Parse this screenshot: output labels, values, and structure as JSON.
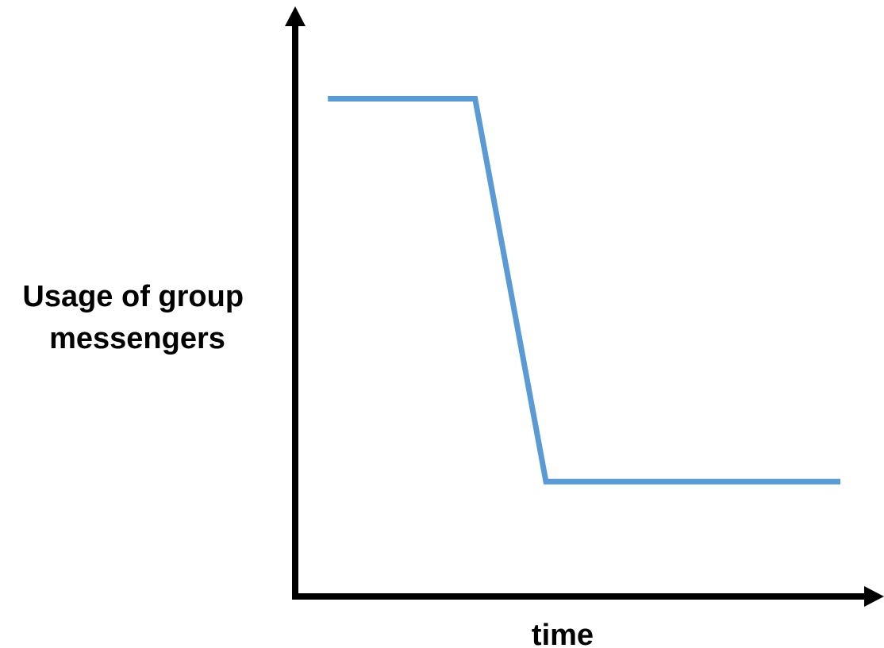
{
  "chart_data": {
    "type": "line",
    "title": "",
    "xlabel": "time",
    "ylabel": "Usage of group messengers",
    "ylabel_lines": [
      "Usage of group",
      "messengers"
    ],
    "x": [
      0.06,
      0.33,
      0.46,
      1.0
    ],
    "y": [
      1.0,
      1.0,
      0.0,
      0.0
    ],
    "xlim": [
      0,
      1.08
    ],
    "ylim": [
      -0.3,
      1.2
    ],
    "grid": false,
    "legend": "none",
    "series": [
      {
        "x": [
          0.06,
          0.33,
          0.46,
          1.0
        ],
        "y": [
          1.0,
          1.0,
          0.0,
          0.0
        ],
        "color": "#5b9bd5"
      }
    ],
    "axis_color": "#000000"
  }
}
